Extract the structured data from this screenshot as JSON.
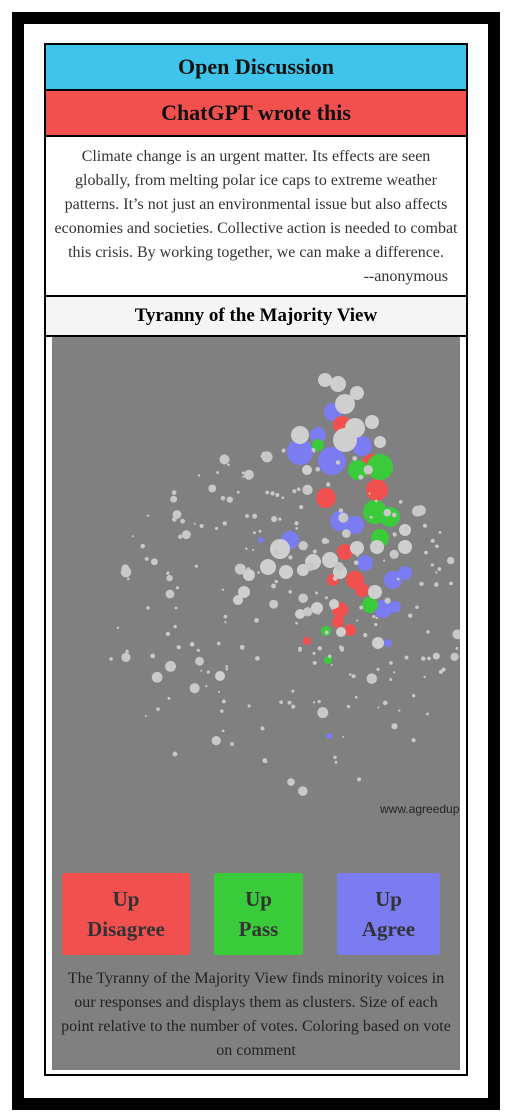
{
  "header": {
    "title": "Open Discussion"
  },
  "card": {
    "title": "ChatGPT wrote this",
    "text": "Climate change is an urgent matter. Its effects are seen globally, from melting polar ice caps to extreme weather patterns. It’s not just an environmental issue but also affects economies and societies. Collective action is needed to combat this crisis. By working together, we can make a difference.",
    "author": "--anonymous"
  },
  "view": {
    "title": "Tyranny of the Majority View",
    "watermark": "www.agreedupon.so",
    "buttons": [
      {
        "line1": "Up",
        "line2": "Disagree"
      },
      {
        "line1": "Up",
        "line2": "Pass"
      },
      {
        "line1": "Up",
        "line2": "Agree"
      }
    ],
    "caption": "The Tyranny of the Majority View finds minority voices in our responses and displays them as clusters. Size of each point relative to the number of votes. Coloring based on vote on comment"
  }
}
